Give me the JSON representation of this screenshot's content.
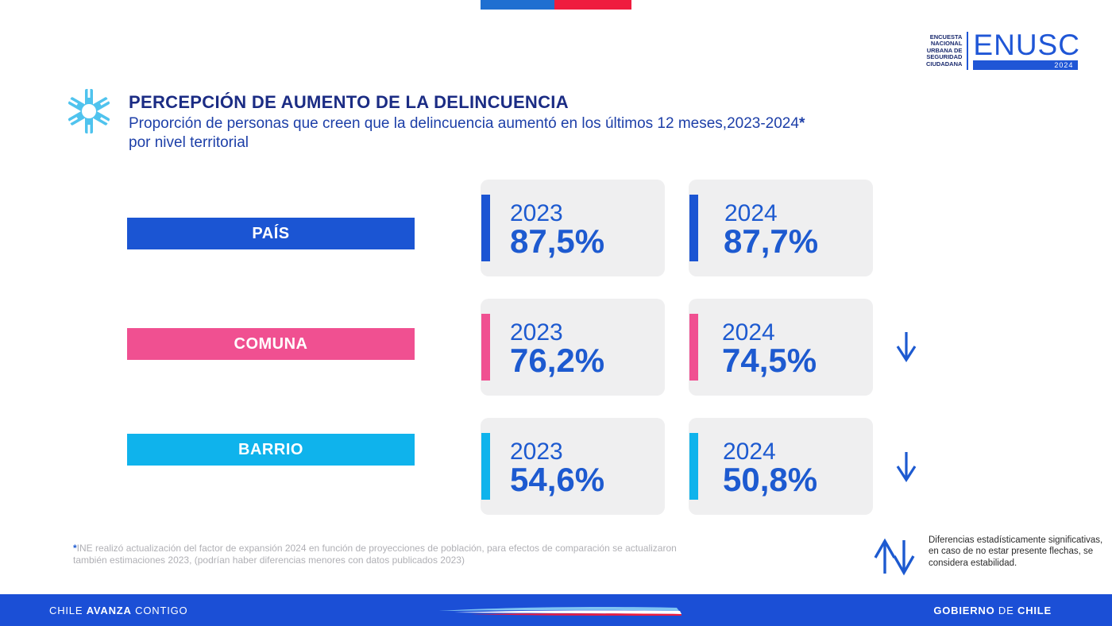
{
  "header": {
    "logo": {
      "small_lines": [
        "ENCUESTA",
        "NACIONAL",
        "URBANA DE",
        "SEGURIDAD",
        "CIUDADANA"
      ],
      "name": "ENUSC",
      "year": "2024"
    },
    "title": "PERCEPCIÓN DE AUMENTO DE LA DELINCUENCIA",
    "subtitle_line1": "Proporción de personas que creen que la delincuencia aumentó en los últimos 12 meses,2023-2024",
    "subtitle_asterisk": "*",
    "subtitle_line2": "por nivel territorial",
    "icon": "snowflake-asterisk-icon"
  },
  "rows": [
    {
      "label": "PAÍS",
      "color": "#1b55d3",
      "cards": [
        {
          "year": "2023",
          "value": "87,5%"
        },
        {
          "year": "2024",
          "value": "87,7%"
        }
      ],
      "arrow": "none"
    },
    {
      "label": "COMUNA",
      "color": "#f05091",
      "cards": [
        {
          "year": "2023",
          "value": "76,2%"
        },
        {
          "year": "2024",
          "value": "74,5%"
        }
      ],
      "arrow": "down-arrow-icon"
    },
    {
      "label": "BARRIO",
      "color": "#0fb3ec",
      "cards": [
        {
          "year": "2023",
          "value": "54,6%"
        },
        {
          "year": "2024",
          "value": "50,8%"
        }
      ],
      "arrow": "down-arrow-icon"
    }
  ],
  "footnote": {
    "asterisk": "*",
    "text": "INE realizó actualización del factor de expansión 2024 en función de proyecciones de población, para efectos de comparación se actualizaron también estimaciones 2023, (podrían haber diferencias menores con datos publicados 2023)"
  },
  "legend": {
    "icon": "up-down-arrows-icon",
    "text": "Diferencias estadísticamente significativas, en caso de no estar presente flechas, se considera estabilidad."
  },
  "footer": {
    "left_prefix": "CHILE ",
    "left_bold": "AVANZA",
    "left_suffix": " CONTIGO",
    "right_bold1": "GOBIERNO",
    "right_middle": " DE ",
    "right_bold2": "CHILE"
  },
  "colors": {
    "primary_blue": "#1b55d3",
    "pink": "#f05091",
    "cyan": "#0fb3ec",
    "card_bg": "#efeff0",
    "footer_blue": "#1b4fd6"
  }
}
